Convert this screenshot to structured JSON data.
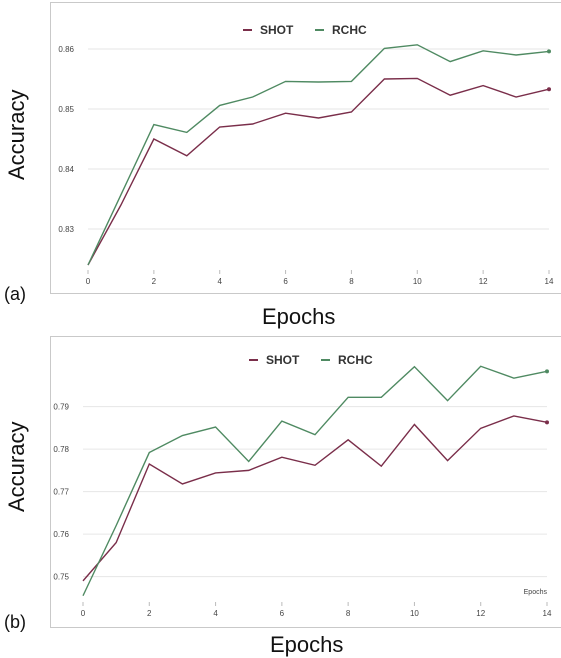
{
  "colors": {
    "shot": "#7a2e4a",
    "rchc": "#4f8a62",
    "grid": "#e6e6e6"
  },
  "chart_data": [
    {
      "type": "line",
      "panel_label": "(a)",
      "xlabel": "Epochs",
      "ylabel": "Accuracy",
      "x": [
        0,
        1,
        2,
        3,
        4,
        5,
        6,
        7,
        8,
        9,
        10,
        11,
        12,
        13,
        14
      ],
      "xticks": [
        "0",
        "2",
        "4",
        "6",
        "8",
        "10",
        "12",
        "14"
      ],
      "xtick_values": [
        0,
        2,
        4,
        6,
        8,
        10,
        12,
        14
      ],
      "yticks": [
        "0.83",
        "0.84",
        "0.85",
        "0.86"
      ],
      "ytick_values": [
        0.83,
        0.84,
        0.85,
        0.86
      ],
      "ylim": [
        0.8235,
        0.8635
      ],
      "xlim": [
        0,
        14
      ],
      "grid": true,
      "legend": "top-center",
      "series": [
        {
          "name": "SHOT",
          "values": [
            0.824,
            0.834,
            0.845,
            0.8422,
            0.847,
            0.8475,
            0.8493,
            0.8485,
            0.8495,
            0.855,
            0.8551,
            0.8523,
            0.8539,
            0.852,
            0.8533
          ]
        },
        {
          "name": "RCHC",
          "values": [
            0.824,
            0.8357,
            0.8474,
            0.8461,
            0.8506,
            0.852,
            0.8546,
            0.8545,
            0.8546,
            0.8601,
            0.8607,
            0.8579,
            0.8597,
            0.859,
            0.8596
          ]
        }
      ]
    },
    {
      "type": "line",
      "panel_label": "(b)",
      "xlabel": "Epochs",
      "ylabel": "Accuracy",
      "inner_note": "Epochs",
      "x": [
        0,
        1,
        2,
        3,
        4,
        5,
        6,
        7,
        8,
        9,
        10,
        11,
        12,
        13,
        14
      ],
      "xticks": [
        "0",
        "2",
        "4",
        "6",
        "8",
        "10",
        "12",
        "14"
      ],
      "xtick_values": [
        0,
        2,
        4,
        6,
        8,
        10,
        12,
        14
      ],
      "yticks": [
        "0.75",
        "0.76",
        "0.77",
        "0.78",
        "0.79"
      ],
      "ytick_values": [
        0.75,
        0.76,
        0.77,
        0.78,
        0.79
      ],
      "ylim": [
        0.7445,
        0.8005
      ],
      "xlim": [
        0,
        14
      ],
      "grid": true,
      "legend": "top-center",
      "series": [
        {
          "name": "SHOT",
          "values": [
            0.749,
            0.758,
            0.7765,
            0.7718,
            0.7744,
            0.775,
            0.7781,
            0.7762,
            0.7822,
            0.776,
            0.7858,
            0.7773,
            0.7849,
            0.7878,
            0.7863
          ]
        },
        {
          "name": "RCHC",
          "values": [
            0.7455,
            0.762,
            0.7792,
            0.7832,
            0.7852,
            0.7771,
            0.7866,
            0.7834,
            0.7922,
            0.7922,
            0.7994,
            0.7914,
            0.7995,
            0.7967,
            0.7983
          ]
        }
      ]
    }
  ]
}
